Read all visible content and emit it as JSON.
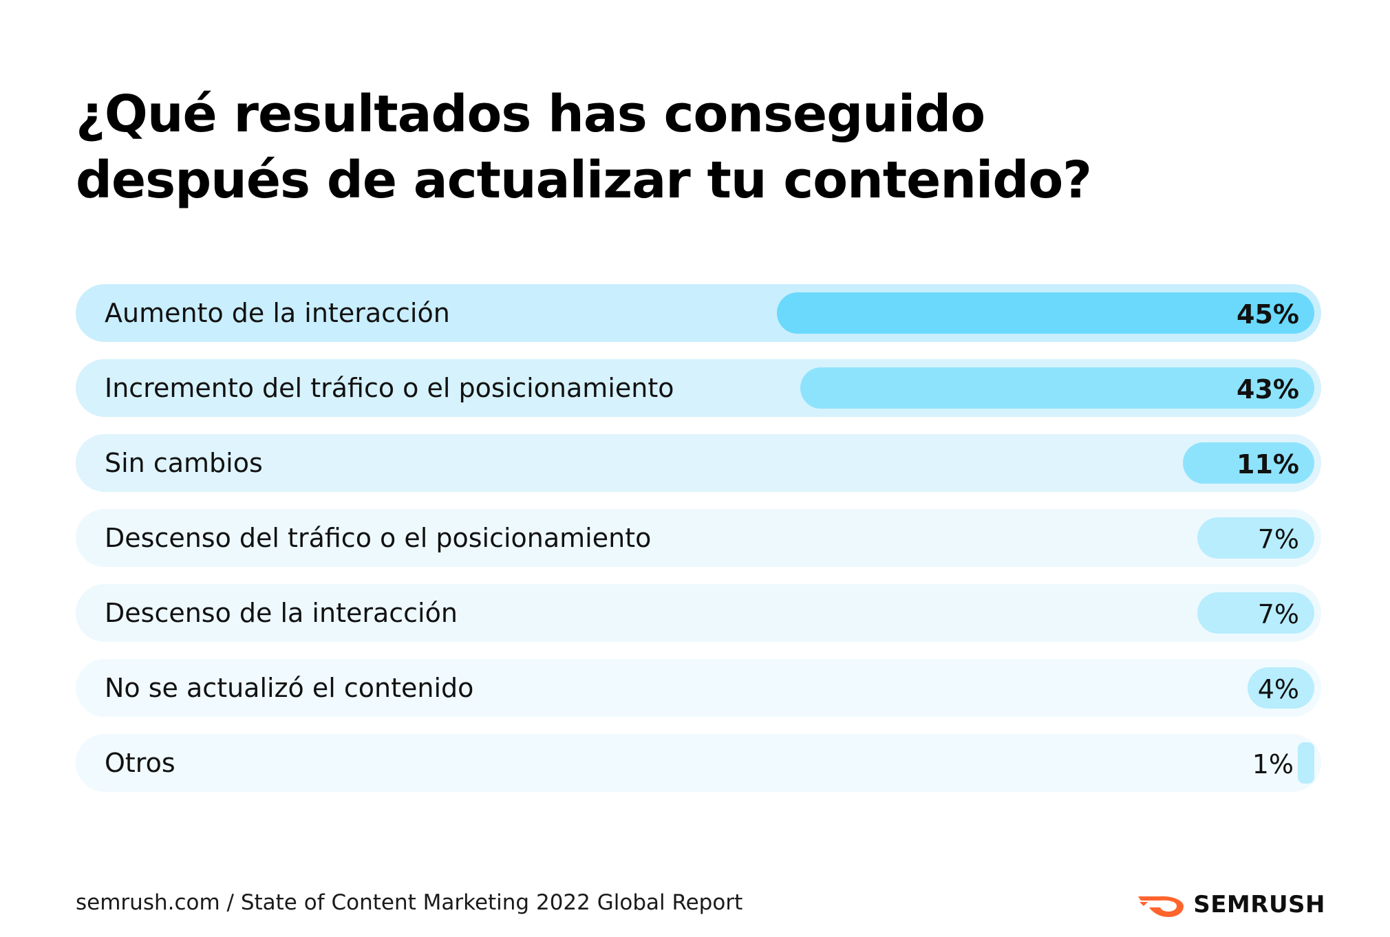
{
  "title": {
    "line1": "¿Qué resultados has conseguido",
    "line2": "después de actualizar tu contenido?"
  },
  "chart_data": {
    "type": "bar",
    "orientation": "horizontal",
    "title": "¿Qué resultados has conseguido después de actualizar tu contenido?",
    "unit": "%",
    "xlim": [
      0,
      100
    ],
    "categories": [
      "Aumento de la interacción",
      "Incremento del tráfico o el posicionamiento",
      "Sin cambios",
      "Descenso del tráfico o el posicionamiento",
      "Descenso de la interacción",
      "No se actualizó el contenido",
      "Otros"
    ],
    "values": [
      45,
      43,
      11,
      7,
      7,
      4,
      1
    ],
    "labels": [
      "45%",
      "43%",
      "11%",
      "7%",
      "7%",
      "4%",
      "1%"
    ]
  },
  "style": {
    "row_backgrounds": [
      "#c9eefd",
      "#d6f2fd",
      "#dff4fd",
      "#eef9fe",
      "#eef9fe",
      "#f1fafe",
      "#f1fafe"
    ],
    "bar_colors": [
      "#6ad9fb",
      "#8ee3fc",
      "#8ee3fc",
      "#b7edfd",
      "#b7edfd",
      "#b7edfd",
      "#b7edfd"
    ],
    "bold_values": [
      true,
      true,
      true,
      false,
      false,
      false,
      false
    ],
    "brand_orange": "#ff642d"
  },
  "footer": {
    "source": "semrush.com / State of Content Marketing 2022 Global Report",
    "brand": "SEMRUSH",
    "brand_icon": "semrush-fire-icon"
  }
}
